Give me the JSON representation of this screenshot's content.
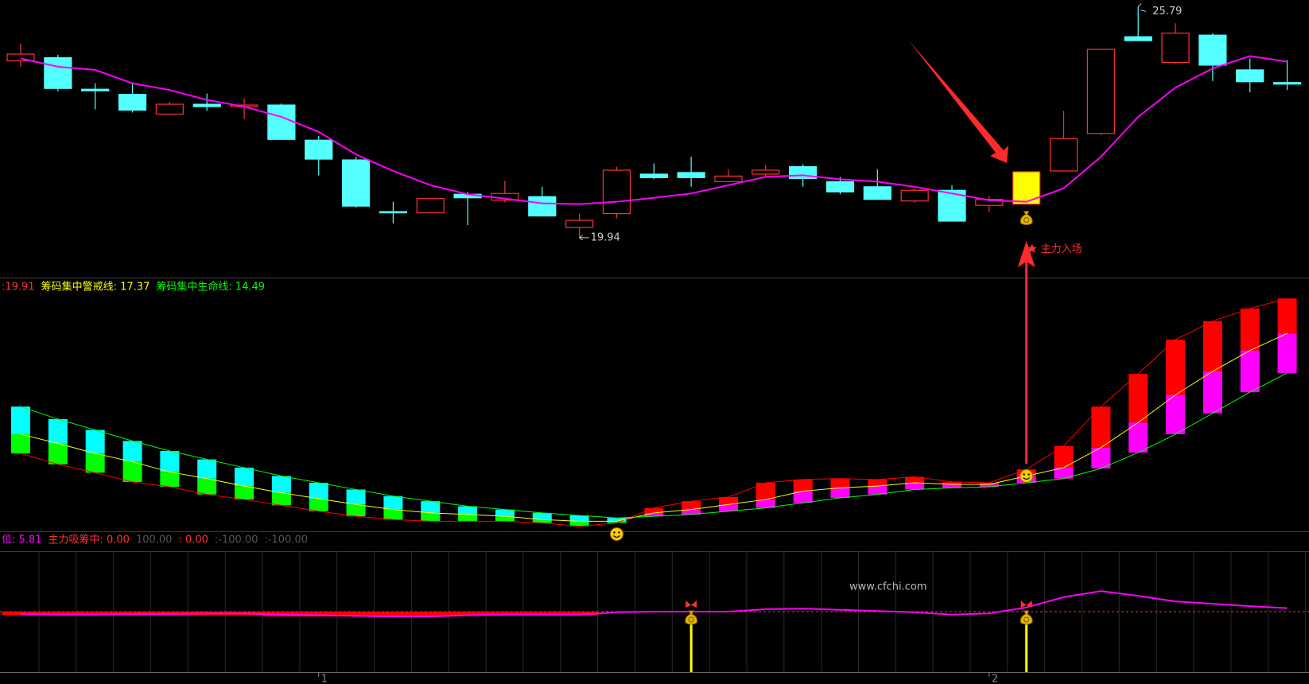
{
  "chart_data": [
    {
      "type": "candlestick",
      "open": [
        24.42,
        24.5,
        23.7,
        23.57,
        23.07,
        23.32,
        23.26,
        23.3,
        22.41,
        21.91,
        20.6,
        20.57,
        21.04,
        20.89,
        20.98,
        20.2,
        20.55,
        21.55,
        21.59,
        21.36,
        21.55,
        21.74,
        21.36,
        21.23,
        20.87,
        21.14,
        20.76,
        20.79,
        21.63,
        22.58,
        25.03,
        24.38,
        25.07,
        24.19,
        23.87
      ],
      "high": [
        24.86,
        24.57,
        23.85,
        23.85,
        23.38,
        23.59,
        23.47,
        23.34,
        22.52,
        21.99,
        20.85,
        20.93,
        21.1,
        21.38,
        21.23,
        20.55,
        21.74,
        21.82,
        21.99,
        21.67,
        21.78,
        21.8,
        21.48,
        21.67,
        21.19,
        21.27,
        21.0,
        21.61,
        23.15,
        24.71,
        25.79,
        25.37,
        25.12,
        24.48,
        24.44
      ],
      "low": [
        24.27,
        23.64,
        23.19,
        23.11,
        23.07,
        23.15,
        22.94,
        22.43,
        21.52,
        20.7,
        20.3,
        20.57,
        20.26,
        20.83,
        20.49,
        19.94,
        20.43,
        21.42,
        21.23,
        21.36,
        21.48,
        21.23,
        21.04,
        20.91,
        20.83,
        20.36,
        20.6,
        20.79,
        21.63,
        22.54,
        24.93,
        24.35,
        23.91,
        23.62,
        23.68
      ],
      "close": [
        24.59,
        23.72,
        23.66,
        23.17,
        23.32,
        23.26,
        23.3,
        22.43,
        21.93,
        20.74,
        20.57,
        20.93,
        20.95,
        21.06,
        20.49,
        20.38,
        21.65,
        21.46,
        21.46,
        21.5,
        21.65,
        21.44,
        21.1,
        20.91,
        21.14,
        20.36,
        20.91,
        21.61,
        22.45,
        24.71,
        24.93,
        25.12,
        24.31,
        23.89,
        23.83
      ],
      "up_color": "#ff3232",
      "down_color": "#54ffff",
      "highlight_color": "#ffff00",
      "series": [
        {
          "color": "#ff00ff",
          "values": [
            24.48,
            24.27,
            24.19,
            23.85,
            23.68,
            23.43,
            23.26,
            23.0,
            22.62,
            22.05,
            21.63,
            21.27,
            21.04,
            20.93,
            20.81,
            20.79,
            20.85,
            20.95,
            21.06,
            21.27,
            21.48,
            21.52,
            21.42,
            21.36,
            21.23,
            21.06,
            20.89,
            20.85,
            21.19,
            21.99,
            23.0,
            23.74,
            24.23,
            24.54,
            24.4
          ]
        }
      ],
      "ylim": [
        18.93,
        25.96
      ],
      "annotations": {
        "high": "25.79",
        "low": "19.94",
        "entry": "主力入场"
      }
    },
    {
      "type": "band-bars",
      "header": [
        {
          "text": ":19.91",
          "color": "#ff3030"
        },
        {
          "text": "筹码集中警戒线: 17.37",
          "color": "#ffff00"
        },
        {
          "text": "筹码集中生命线: 14.49",
          "color": "#00ff00"
        }
      ],
      "series": [
        {
          "color": "#ff0000",
          "bar_up": "#ff0000",
          "bar_down": "#00ff00",
          "values": [
            8.64,
            7.85,
            7.24,
            6.57,
            6.21,
            5.66,
            5.29,
            4.87,
            4.44,
            4.07,
            3.83,
            3.71,
            3.71,
            3.71,
            3.59,
            3.34,
            3.59,
            4.68,
            5.17,
            5.47,
            6.51,
            6.75,
            6.81,
            6.75,
            6.94,
            6.57,
            6.51,
            7.48,
            9.19,
            12.05,
            14.43,
            16.92,
            18.26,
            19.18,
            19.91
          ]
        },
        {
          "color": "#ffff00",
          "values": [
            10.04,
            9.37,
            8.64,
            8.03,
            7.3,
            6.81,
            6.27,
            5.78,
            5.35,
            4.93,
            4.56,
            4.32,
            4.2,
            4.07,
            3.83,
            3.71,
            3.71,
            4.32,
            4.56,
            4.93,
            5.29,
            5.9,
            6.14,
            6.27,
            6.51,
            6.39,
            6.39,
            7.0,
            7.61,
            9.07,
            10.89,
            12.9,
            14.61,
            16.13,
            17.37
          ]
        },
        {
          "color": "#00ff00",
          "bar_up": "#ff00ff",
          "bar_down": "#00ffff",
          "values": [
            12.05,
            11.14,
            10.35,
            9.55,
            8.82,
            8.21,
            7.61,
            7.0,
            6.51,
            6.02,
            5.54,
            5.17,
            4.8,
            4.56,
            4.32,
            4.13,
            3.95,
            4.07,
            4.2,
            4.44,
            4.68,
            5.05,
            5.41,
            5.66,
            6.02,
            6.14,
            6.21,
            6.51,
            6.81,
            7.55,
            8.7,
            10.04,
            11.56,
            13.09,
            14.49
          ]
        }
      ],
      "ylim": [
        2.98,
        21.43
      ]
    },
    {
      "type": "indicator",
      "header": [
        {
          "text": "位: 5.81",
          "color": "#ff00ff"
        },
        {
          "text": "主力吸筹中: 0.00",
          "color": "#ff3030"
        },
        {
          "text": "100.00",
          "color": "#555555"
        },
        {
          "text": ": 0.00",
          "color": "#ff3030"
        },
        {
          "text": ":-100.00",
          "color": "#555555"
        },
        {
          "text": ":-100.00",
          "color": "#555555"
        }
      ],
      "categories": [
        null,
        null,
        null,
        null,
        null,
        null,
        null,
        null,
        "1",
        null,
        null,
        null,
        null,
        null,
        null,
        null,
        null,
        null,
        null,
        null,
        null,
        null,
        null,
        null,
        null,
        null,
        "2",
        null,
        null,
        null,
        null,
        null,
        null,
        null,
        null
      ],
      "series": [
        {
          "color": "#ff00ff",
          "values": [
            -4,
            -5,
            -5,
            -4,
            -4,
            -3,
            -3,
            -5,
            -6,
            -7,
            -8,
            -8,
            -6,
            -5,
            -5,
            -5,
            -1,
            0,
            0,
            0,
            4,
            5,
            3,
            1,
            -1,
            -5,
            -3,
            7,
            24,
            34,
            26,
            17,
            13,
            9,
            5.81
          ]
        },
        {
          "color": "#ff0000",
          "values": [
            -6,
            -6,
            -6,
            -6,
            -6,
            -6,
            -6,
            -8,
            -8,
            -8,
            -8,
            -8,
            -6,
            -6,
            -6,
            -6,
            0,
            0,
            0,
            0,
            0,
            0,
            0,
            0,
            0,
            0,
            0,
            0,
            0,
            0,
            0,
            0,
            0,
            0,
            0
          ]
        },
        {
          "color": "#ffff00",
          "values": [
            0,
            0,
            0,
            0,
            0,
            0,
            0,
            0,
            0,
            0,
            0,
            0,
            0,
            0,
            0,
            0,
            0,
            0,
            -100,
            0,
            0,
            0,
            0,
            0,
            0,
            0,
            0,
            -100,
            0,
            0,
            0,
            0,
            0,
            0,
            0
          ]
        }
      ],
      "ylim": [
        -100,
        100
      ],
      "watermark": "www.cfchi.com"
    }
  ]
}
